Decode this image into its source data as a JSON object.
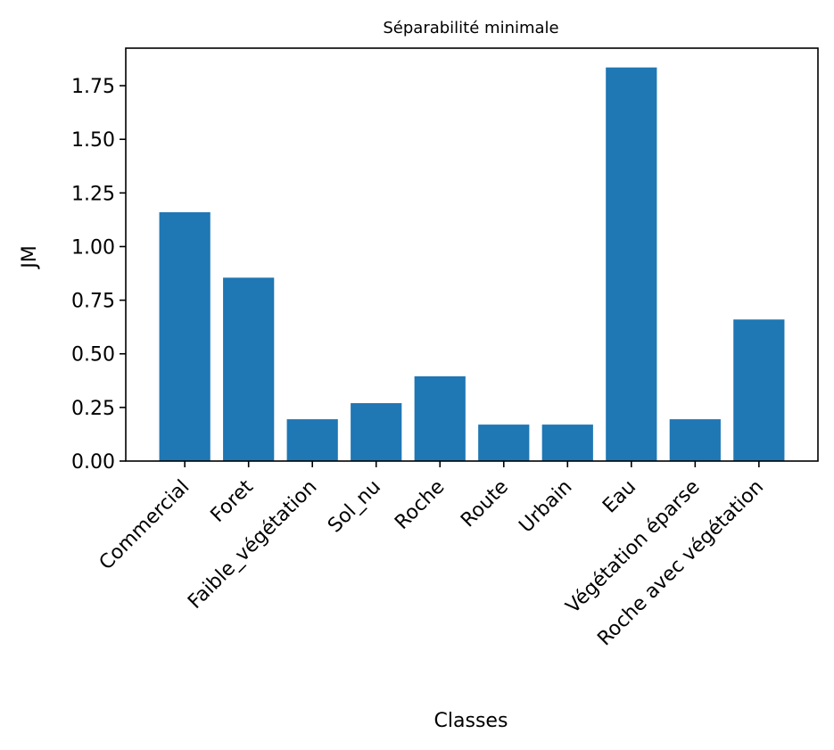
{
  "chart_data": {
    "type": "bar",
    "title": "Séparabilité minimale",
    "xlabel": "Classes",
    "ylabel": "JM",
    "categories": [
      "Commercial",
      "Foret",
      "Faible_végétation",
      "Sol_nu",
      "Roche",
      "Route",
      "Urbain",
      "Eau",
      "Végétation éparse",
      "Roche avec végétation"
    ],
    "values": [
      1.16,
      0.855,
      0.195,
      0.27,
      0.395,
      0.17,
      0.17,
      1.835,
      0.195,
      0.66
    ],
    "ylim": [
      0,
      1.925
    ],
    "yticks": [
      "0.00",
      "0.25",
      "0.50",
      "0.75",
      "1.00",
      "1.25",
      "1.50",
      "1.75"
    ],
    "ytick_values": [
      0,
      0.25,
      0.5,
      0.75,
      1.0,
      1.25,
      1.5,
      1.75
    ],
    "bar_color": "#1f77b4",
    "grid": false
  }
}
